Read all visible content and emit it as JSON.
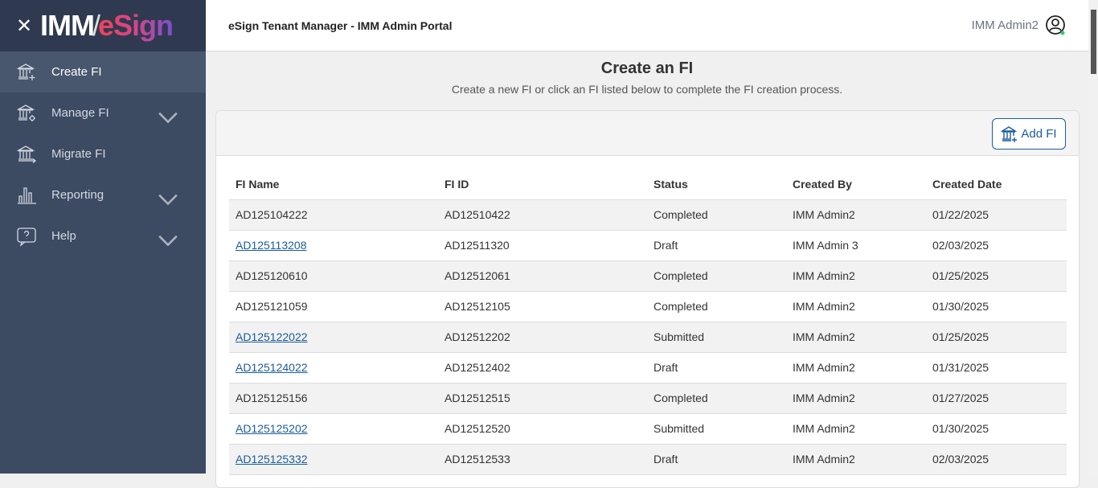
{
  "logo": {
    "text_imm": "IMM",
    "text_esign": "eSign"
  },
  "sidebar": {
    "items": [
      {
        "label": "Create FI",
        "icon": "bank-plus-icon",
        "active": true,
        "expandable": false
      },
      {
        "label": "Manage FI",
        "icon": "bank-gear-icon",
        "active": false,
        "expandable": true
      },
      {
        "label": "Migrate FI",
        "icon": "bank-arrow-icon",
        "active": false,
        "expandable": false
      },
      {
        "label": "Reporting",
        "icon": "bar-chart-icon",
        "active": false,
        "expandable": true
      },
      {
        "label": "Help",
        "icon": "help-bubble-icon",
        "active": false,
        "expandable": true
      }
    ]
  },
  "header": {
    "title": "eSign Tenant Manager - IMM Admin Portal",
    "user": "IMM Admin2",
    "status_color": "#2ecc71"
  },
  "page": {
    "title": "Create an FI",
    "subtitle": "Create a new FI or click an FI listed below to complete the FI creation process.",
    "add_label": "Add FI"
  },
  "table": {
    "columns": [
      "FI Name",
      "FI ID",
      "Status",
      "Created By",
      "Created Date"
    ],
    "rows": [
      {
        "name": "AD125104222",
        "id": "AD12510422",
        "status": "Completed",
        "by": "IMM Admin2",
        "date": "01/22/2025",
        "link": false
      },
      {
        "name": "AD125113208",
        "id": "AD12511320",
        "status": "Draft",
        "by": "IMM Admin 3",
        "date": "02/03/2025",
        "link": true
      },
      {
        "name": "AD125120610",
        "id": "AD12512061",
        "status": "Completed",
        "by": "IMM Admin2",
        "date": "01/25/2025",
        "link": false
      },
      {
        "name": "AD125121059",
        "id": "AD12512105",
        "status": "Completed",
        "by": "IMM Admin2",
        "date": "01/30/2025",
        "link": false
      },
      {
        "name": "AD125122022",
        "id": "AD12512202",
        "status": "Submitted",
        "by": "IMM Admin2",
        "date": "01/25/2025",
        "link": true
      },
      {
        "name": "AD125124022",
        "id": "AD12512402",
        "status": "Draft",
        "by": "IMM Admin2",
        "date": "01/31/2025",
        "link": true
      },
      {
        "name": "AD125125156",
        "id": "AD12512515",
        "status": "Completed",
        "by": "IMM Admin2",
        "date": "01/27/2025",
        "link": false
      },
      {
        "name": "AD125125202",
        "id": "AD12512520",
        "status": "Submitted",
        "by": "IMM Admin2",
        "date": "01/30/2025",
        "link": true
      },
      {
        "name": "AD125125332",
        "id": "AD12512533",
        "status": "Draft",
        "by": "IMM Admin2",
        "date": "02/03/2025",
        "link": true
      }
    ]
  }
}
